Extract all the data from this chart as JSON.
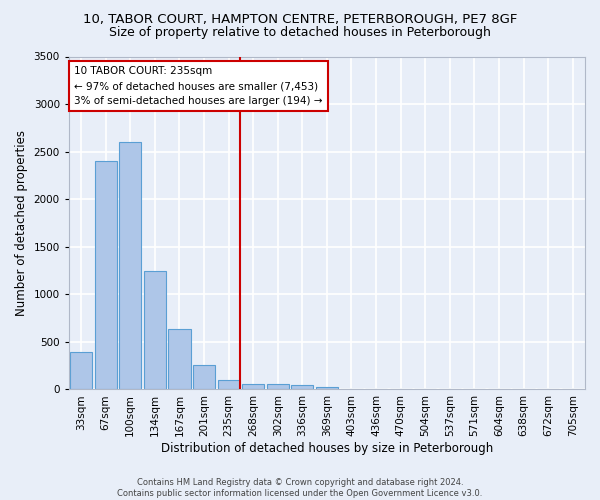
{
  "title_line1": "10, TABOR COURT, HAMPTON CENTRE, PETERBOROUGH, PE7 8GF",
  "title_line2": "Size of property relative to detached houses in Peterborough",
  "xlabel": "Distribution of detached houses by size in Peterborough",
  "ylabel": "Number of detached properties",
  "categories": [
    "33sqm",
    "67sqm",
    "100sqm",
    "134sqm",
    "167sqm",
    "201sqm",
    "235sqm",
    "268sqm",
    "302sqm",
    "336sqm",
    "369sqm",
    "403sqm",
    "436sqm",
    "470sqm",
    "504sqm",
    "537sqm",
    "571sqm",
    "604sqm",
    "638sqm",
    "672sqm",
    "705sqm"
  ],
  "values": [
    390,
    2400,
    2600,
    1240,
    640,
    260,
    100,
    60,
    55,
    45,
    30,
    0,
    0,
    0,
    0,
    0,
    0,
    0,
    0,
    0,
    0
  ],
  "bar_color": "#aec6e8",
  "bar_edge_color": "#5a9fd4",
  "highlight_index": 6,
  "highlight_line_color": "#cc0000",
  "annotation_text": "10 TABOR COURT: 235sqm\n← 97% of detached houses are smaller (7,453)\n3% of semi-detached houses are larger (194) →",
  "annotation_box_color": "#ffffff",
  "annotation_box_edge_color": "#cc0000",
  "ylim": [
    0,
    3500
  ],
  "yticks": [
    0,
    500,
    1000,
    1500,
    2000,
    2500,
    3000,
    3500
  ],
  "background_color": "#e8eef8",
  "grid_color": "#ffffff",
  "footer_line1": "Contains HM Land Registry data © Crown copyright and database right 2024.",
  "footer_line2": "Contains public sector information licensed under the Open Government Licence v3.0.",
  "title_fontsize": 9.5,
  "subtitle_fontsize": 9,
  "axis_label_fontsize": 8.5,
  "tick_fontsize": 7.5,
  "annotation_fontsize": 7.5
}
